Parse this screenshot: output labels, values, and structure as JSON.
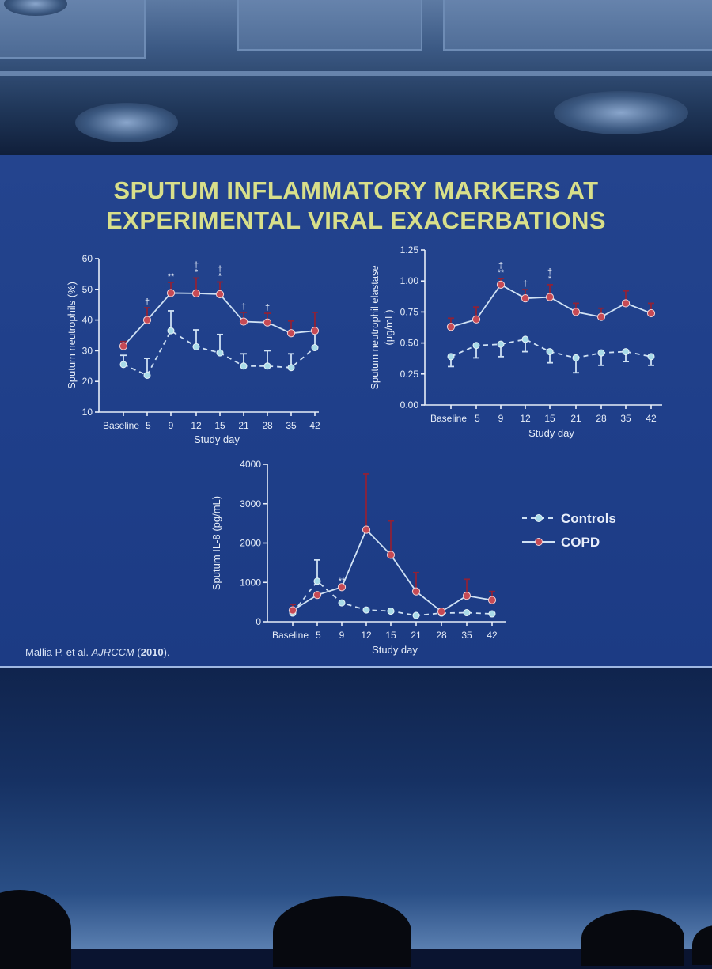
{
  "slide": {
    "title_line1": "SPUTUM INFLAMMATORY MARKERS AT",
    "title_line2": "EXPERIMENTAL VIRAL EXACERBATIONS",
    "citation_authors": "Mallia P, et al. ",
    "citation_journal": "AJRCCM",
    "citation_year": "2010",
    "citation_open": " (",
    "citation_close": ")."
  },
  "colors": {
    "slide_bg": "#1f3f8a",
    "title": "#d8df8a",
    "copd_marker": "#c64a55",
    "copd_error": "#8e2238",
    "controls_marker": "#a9dbe8",
    "line": "#cfe1f4"
  },
  "legend": {
    "controls_label": "Controls",
    "copd_label": "COPD"
  },
  "chart_data": [
    {
      "type": "line",
      "id": "neutrophils",
      "xlabel": "Study day",
      "ylabel": "Sputum neutrophils (%)",
      "ylabel_line2": "",
      "categories": [
        "Baseline",
        "5",
        "9",
        "12",
        "15",
        "21",
        "28",
        "35",
        "42"
      ],
      "ylim": [
        10,
        60
      ],
      "yticks": [
        "10",
        "20",
        "30",
        "40",
        "50",
        "60"
      ],
      "series": [
        {
          "name": "COPD",
          "values": [
            31.5,
            40,
            48.8,
            48.7,
            48.4,
            39.5,
            39.2,
            35.7,
            36.5
          ],
          "err_up": [
            1.5,
            4,
            3.5,
            5,
            4,
            3,
            3,
            4,
            6
          ],
          "err_down": [
            0,
            0,
            0,
            0,
            0,
            0,
            0,
            0,
            0
          ]
        },
        {
          "name": "Controls",
          "values": [
            25.5,
            22,
            36.5,
            31.3,
            29.3,
            25,
            25,
            24.5,
            31
          ],
          "err_up": [
            3,
            5.5,
            6.5,
            5.5,
            6,
            4,
            5,
            4.5,
            5
          ],
          "err_down": [
            0,
            0,
            0,
            0,
            0,
            0,
            0,
            0,
            0
          ]
        }
      ],
      "annotations": [
        {
          "index": 1,
          "text": [
            "†"
          ]
        },
        {
          "index": 2,
          "text": [
            "**"
          ]
        },
        {
          "index": 3,
          "text": [
            "†",
            "*"
          ]
        },
        {
          "index": 4,
          "text": [
            "†",
            "*"
          ]
        },
        {
          "index": 5,
          "text": [
            "†"
          ]
        },
        {
          "index": 6,
          "text": [
            "†"
          ]
        }
      ]
    },
    {
      "type": "line",
      "id": "elastase",
      "xlabel": "Study day",
      "ylabel": "Sputum neutrophil elastase",
      "ylabel_line2": "(µg/mL)",
      "categories": [
        "Baseline",
        "5",
        "9",
        "12",
        "15",
        "21",
        "28",
        "35",
        "42"
      ],
      "ylim": [
        0,
        1.25
      ],
      "yticks": [
        "0.00",
        "0.25",
        "0.50",
        "0.75",
        "1.00",
        "1.25"
      ],
      "series": [
        {
          "name": "COPD",
          "values": [
            0.63,
            0.69,
            0.97,
            0.86,
            0.87,
            0.75,
            0.71,
            0.82,
            0.74
          ],
          "err_up": [
            0.07,
            0.1,
            0.05,
            0.07,
            0.1,
            0.07,
            0.07,
            0.1,
            0.08
          ],
          "err_down": [
            0,
            0,
            0,
            0,
            0,
            0,
            0,
            0,
            0
          ]
        },
        {
          "name": "Controls",
          "values": [
            0.39,
            0.48,
            0.49,
            0.53,
            0.43,
            0.38,
            0.42,
            0.43,
            0.39
          ],
          "err_up": [
            0,
            0,
            0,
            0,
            0,
            0,
            0,
            0,
            0
          ],
          "err_down": [
            0.08,
            0.1,
            0.1,
            0.1,
            0.09,
            0.12,
            0.1,
            0.08,
            0.07
          ]
        }
      ],
      "annotations": [
        {
          "index": 2,
          "text": [
            "‡",
            "**"
          ]
        },
        {
          "index": 3,
          "text": [
            "†"
          ]
        },
        {
          "index": 4,
          "text": [
            "†",
            "*"
          ]
        }
      ]
    },
    {
      "type": "line",
      "id": "il8",
      "xlabel": "Study day",
      "ylabel": "Sputum IL-8 (pg/mL)",
      "ylabel_line2": "",
      "categories": [
        "Baseline",
        "5",
        "9",
        "12",
        "15",
        "21",
        "28",
        "35",
        "42"
      ],
      "ylim": [
        0,
        4000
      ],
      "yticks": [
        "0",
        "1000",
        "2000",
        "3000",
        "4000"
      ],
      "series": [
        {
          "name": "COPD",
          "values": [
            290,
            680,
            880,
            2340,
            1700,
            770,
            260,
            660,
            550
          ],
          "err_up": [
            150,
            0,
            0,
            1420,
            860,
            480,
            0,
            420,
            220
          ],
          "err_down": [
            0,
            0,
            0,
            0,
            0,
            0,
            0,
            0,
            0
          ]
        },
        {
          "name": "Controls",
          "values": [
            220,
            1030,
            480,
            300,
            270,
            160,
            220,
            230,
            200
          ],
          "err_up": [
            0,
            540,
            0,
            0,
            0,
            0,
            0,
            0,
            0
          ],
          "err_down": [
            0,
            0,
            0,
            0,
            0,
            0,
            0,
            0,
            0
          ]
        }
      ],
      "annotations": [
        {
          "index": 2,
          "text": [
            "**"
          ]
        }
      ]
    }
  ]
}
